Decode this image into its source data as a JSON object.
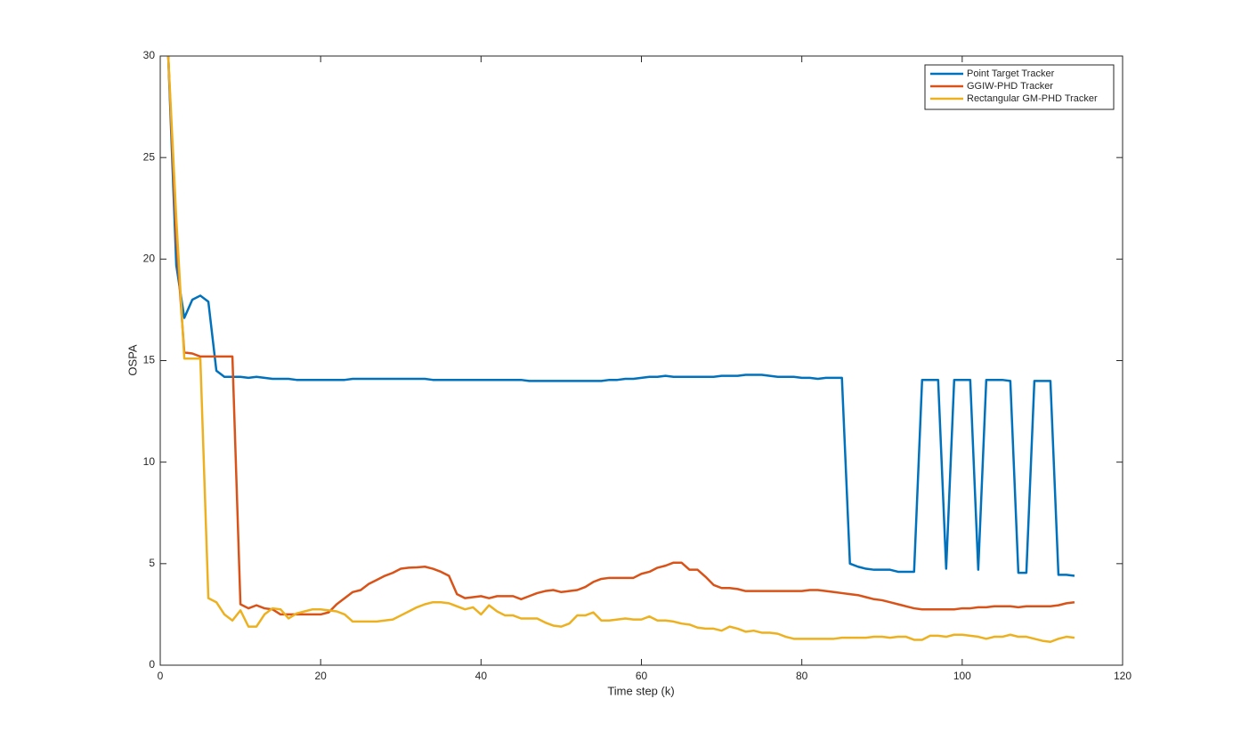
{
  "chart_data": {
    "type": "line",
    "xlabel": "Time step (k)",
    "ylabel": "OSPA",
    "x": [
      1,
      2,
      3,
      4,
      5,
      6,
      7,
      8,
      9,
      10,
      11,
      12,
      13,
      14,
      15,
      16,
      17,
      18,
      19,
      20,
      21,
      22,
      23,
      24,
      25,
      26,
      27,
      28,
      29,
      30,
      31,
      32,
      33,
      34,
      35,
      36,
      37,
      38,
      39,
      40,
      41,
      42,
      43,
      44,
      45,
      46,
      47,
      48,
      49,
      50,
      51,
      52,
      53,
      54,
      55,
      56,
      57,
      58,
      59,
      60,
      61,
      62,
      63,
      64,
      65,
      66,
      67,
      68,
      69,
      70,
      71,
      72,
      73,
      74,
      75,
      76,
      77,
      78,
      79,
      80,
      81,
      82,
      83,
      84,
      85,
      86,
      87,
      88,
      89,
      90,
      91,
      92,
      93,
      94,
      95,
      96,
      97,
      98,
      99,
      100,
      101,
      102,
      103,
      104,
      105,
      106,
      107,
      108,
      109,
      110,
      111,
      112,
      113,
      114
    ],
    "series": [
      {
        "name": "Point Target Tracker",
        "color": "#0072BD",
        "values": [
          30,
          19.7,
          17.1,
          18,
          18.2,
          17.9,
          14.5,
          14.2,
          14.2,
          14.2,
          14.15,
          14.2,
          14.15,
          14.1,
          14.1,
          14.1,
          14.05,
          14.05,
          14.05,
          14.05,
          14.05,
          14.05,
          14.05,
          14.1,
          14.1,
          14.1,
          14.1,
          14.1,
          14.1,
          14.1,
          14.1,
          14.1,
          14.1,
          14.05,
          14.05,
          14.05,
          14.05,
          14.05,
          14.05,
          14.05,
          14.05,
          14.05,
          14.05,
          14.05,
          14.05,
          14,
          14,
          14,
          14,
          14,
          14,
          14,
          14,
          14,
          14,
          14.05,
          14.05,
          14.1,
          14.1,
          14.15,
          14.2,
          14.2,
          14.25,
          14.2,
          14.2,
          14.2,
          14.2,
          14.2,
          14.2,
          14.25,
          14.25,
          14.25,
          14.3,
          14.3,
          14.3,
          14.25,
          14.2,
          14.2,
          14.2,
          14.15,
          14.15,
          14.1,
          14.15,
          14.15,
          14.15,
          5,
          4.85,
          4.75,
          4.7,
          4.7,
          4.7,
          4.6,
          4.6,
          4.6,
          14.05,
          14.05,
          14.05,
          4.75,
          14.05,
          14.05,
          14.05,
          4.7,
          14.05,
          14.05,
          14.05,
          14,
          4.55,
          4.55,
          14,
          14,
          14,
          4.45,
          4.45,
          4.4
        ]
      },
      {
        "name": "GGIW-PHD Tracker",
        "color": "#D95319",
        "values": [
          30,
          21,
          15.4,
          15.35,
          15.2,
          15.2,
          15.2,
          15.2,
          15.2,
          3,
          2.8,
          2.95,
          2.8,
          2.75,
          2.5,
          2.5,
          2.5,
          2.5,
          2.5,
          2.5,
          2.6,
          3,
          3.3,
          3.6,
          3.7,
          4,
          4.2,
          4.4,
          4.55,
          4.75,
          4.8,
          4.82,
          4.85,
          4.75,
          4.6,
          4.4,
          3.5,
          3.3,
          3.35,
          3.4,
          3.3,
          3.4,
          3.4,
          3.4,
          3.25,
          3.4,
          3.55,
          3.65,
          3.7,
          3.6,
          3.65,
          3.7,
          3.85,
          4.1,
          4.25,
          4.3,
          4.3,
          4.3,
          4.3,
          4.5,
          4.6,
          4.8,
          4.9,
          5.05,
          5.05,
          4.7,
          4.7,
          4.35,
          3.95,
          3.8,
          3.8,
          3.75,
          3.65,
          3.65,
          3.65,
          3.65,
          3.65,
          3.65,
          3.65,
          3.65,
          3.7,
          3.7,
          3.65,
          3.6,
          3.55,
          3.5,
          3.45,
          3.35,
          3.25,
          3.2,
          3.1,
          3,
          2.9,
          2.8,
          2.75,
          2.75,
          2.75,
          2.75,
          2.75,
          2.8,
          2.8,
          2.85,
          2.85,
          2.9,
          2.9,
          2.9,
          2.85,
          2.9,
          2.9,
          2.9,
          2.9,
          2.95,
          3.05,
          3.1
        ]
      },
      {
        "name": "Rectangular GM-PHD Tracker",
        "color": "#EDB120",
        "values": [
          30,
          22,
          15.1,
          15.1,
          15.1,
          3.3,
          3.1,
          2.5,
          2.2,
          2.7,
          1.9,
          1.9,
          2.5,
          2.8,
          2.75,
          2.3,
          2.55,
          2.65,
          2.75,
          2.75,
          2.7,
          2.65,
          2.5,
          2.15,
          2.15,
          2.15,
          2.15,
          2.2,
          2.25,
          2.45,
          2.65,
          2.85,
          3,
          3.1,
          3.1,
          3.05,
          2.9,
          2.75,
          2.85,
          2.5,
          2.95,
          2.65,
          2.45,
          2.45,
          2.3,
          2.3,
          2.3,
          2.1,
          1.95,
          1.9,
          2.05,
          2.45,
          2.45,
          2.6,
          2.2,
          2.2,
          2.25,
          2.3,
          2.25,
          2.25,
          2.4,
          2.2,
          2.2,
          2.15,
          2.05,
          2,
          1.85,
          1.8,
          1.8,
          1.7,
          1.9,
          1.8,
          1.65,
          1.7,
          1.6,
          1.6,
          1.55,
          1.4,
          1.3,
          1.3,
          1.3,
          1.3,
          1.3,
          1.3,
          1.35,
          1.35,
          1.35,
          1.35,
          1.4,
          1.4,
          1.35,
          1.4,
          1.4,
          1.25,
          1.25,
          1.45,
          1.45,
          1.4,
          1.5,
          1.5,
          1.45,
          1.4,
          1.3,
          1.4,
          1.4,
          1.5,
          1.4,
          1.4,
          1.3,
          1.2,
          1.15,
          1.3,
          1.4,
          1.35
        ]
      }
    ],
    "xlim": [
      0,
      120
    ],
    "xticks": [
      0,
      20,
      40,
      60,
      80,
      100,
      120
    ],
    "ylim": [
      0,
      30
    ],
    "yticks": [
      0,
      5,
      10,
      15,
      20,
      25,
      30
    ],
    "legend": "northeast"
  }
}
